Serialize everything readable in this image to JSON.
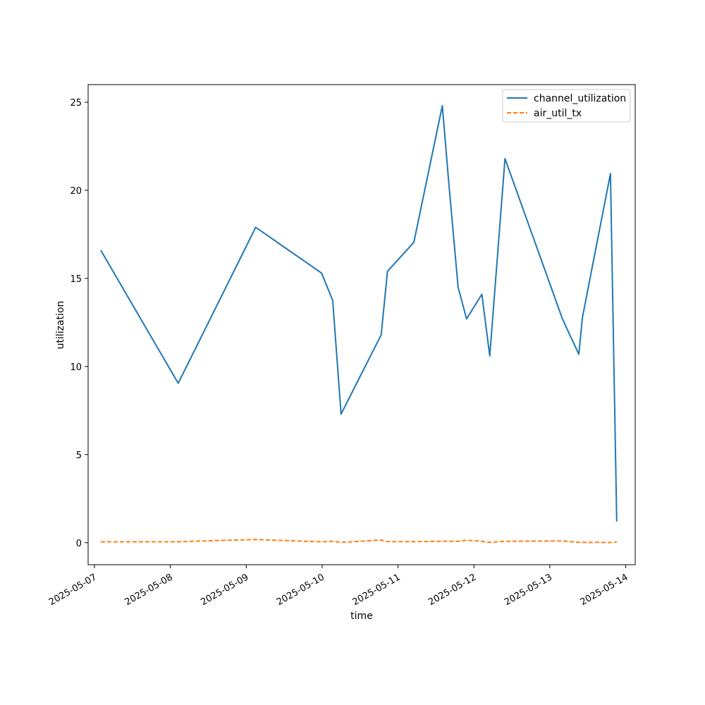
{
  "chart_data": {
    "type": "line",
    "xlabel": "time",
    "ylabel": "utilization",
    "x_scale": "date",
    "xlim": [
      "2025-05-06T22:00",
      "2025-05-14T03:00"
    ],
    "ylim": [
      -1.25,
      26
    ],
    "x_ticks": [
      "2025-05-07",
      "2025-05-08",
      "2025-05-09",
      "2025-05-10",
      "2025-05-11",
      "2025-05-12",
      "2025-05-13",
      "2025-05-14"
    ],
    "y_ticks": [
      0,
      5,
      10,
      15,
      20,
      25
    ],
    "grid": false,
    "legend": "top-right",
    "series": [
      {
        "name": "channel_utilization",
        "color": "#1f77b4",
        "style": "solid",
        "points": [
          [
            "2025-05-07T02:00",
            16.6
          ],
          [
            "2025-05-08T02:30",
            9.05
          ],
          [
            "2025-05-09T03:00",
            17.9
          ],
          [
            "2025-05-09T23:50",
            15.3
          ],
          [
            "2025-05-10T03:20",
            13.75
          ],
          [
            "2025-05-10T06:00",
            7.3
          ],
          [
            "2025-05-10T18:40",
            11.8
          ],
          [
            "2025-05-10T20:40",
            15.4
          ],
          [
            "2025-05-11T05:00",
            17.05
          ],
          [
            "2025-05-11T14:00",
            24.8
          ],
          [
            "2025-05-11T16:00",
            20.5
          ],
          [
            "2025-05-11T19:00",
            14.5
          ],
          [
            "2025-05-11T21:40",
            12.7
          ],
          [
            "2025-05-12T02:30",
            14.1
          ],
          [
            "2025-05-12T05:00",
            10.6
          ],
          [
            "2025-05-12T09:50",
            21.8
          ],
          [
            "2025-05-13T04:00",
            12.7
          ],
          [
            "2025-05-13T09:10",
            10.7
          ],
          [
            "2025-05-13T10:20",
            12.8
          ],
          [
            "2025-05-13T19:10",
            20.95
          ],
          [
            "2025-05-13T21:10",
            1.2
          ]
        ]
      },
      {
        "name": "air_util_tx",
        "color": "#ff7f0e",
        "style": "dashed",
        "points": [
          [
            "2025-05-07T02:00",
            0.05
          ],
          [
            "2025-05-08T02:30",
            0.05
          ],
          [
            "2025-05-08T14:00",
            0.12
          ],
          [
            "2025-05-09T03:00",
            0.18
          ],
          [
            "2025-05-09T23:50",
            0.05
          ],
          [
            "2025-05-10T03:20",
            0.08
          ],
          [
            "2025-05-10T06:00",
            0.02
          ],
          [
            "2025-05-10T18:40",
            0.15
          ],
          [
            "2025-05-10T20:40",
            0.06
          ],
          [
            "2025-05-11T05:00",
            0.06
          ],
          [
            "2025-05-11T14:00",
            0.08
          ],
          [
            "2025-05-11T19:00",
            0.08
          ],
          [
            "2025-05-11T21:40",
            0.14
          ],
          [
            "2025-05-12T02:30",
            0.08
          ],
          [
            "2025-05-12T05:00",
            0.02
          ],
          [
            "2025-05-12T09:50",
            0.08
          ],
          [
            "2025-05-13T04:00",
            0.1
          ],
          [
            "2025-05-13T09:10",
            0.02
          ],
          [
            "2025-05-13T19:10",
            0.01
          ],
          [
            "2025-05-13T21:10",
            0.04
          ]
        ]
      }
    ]
  }
}
